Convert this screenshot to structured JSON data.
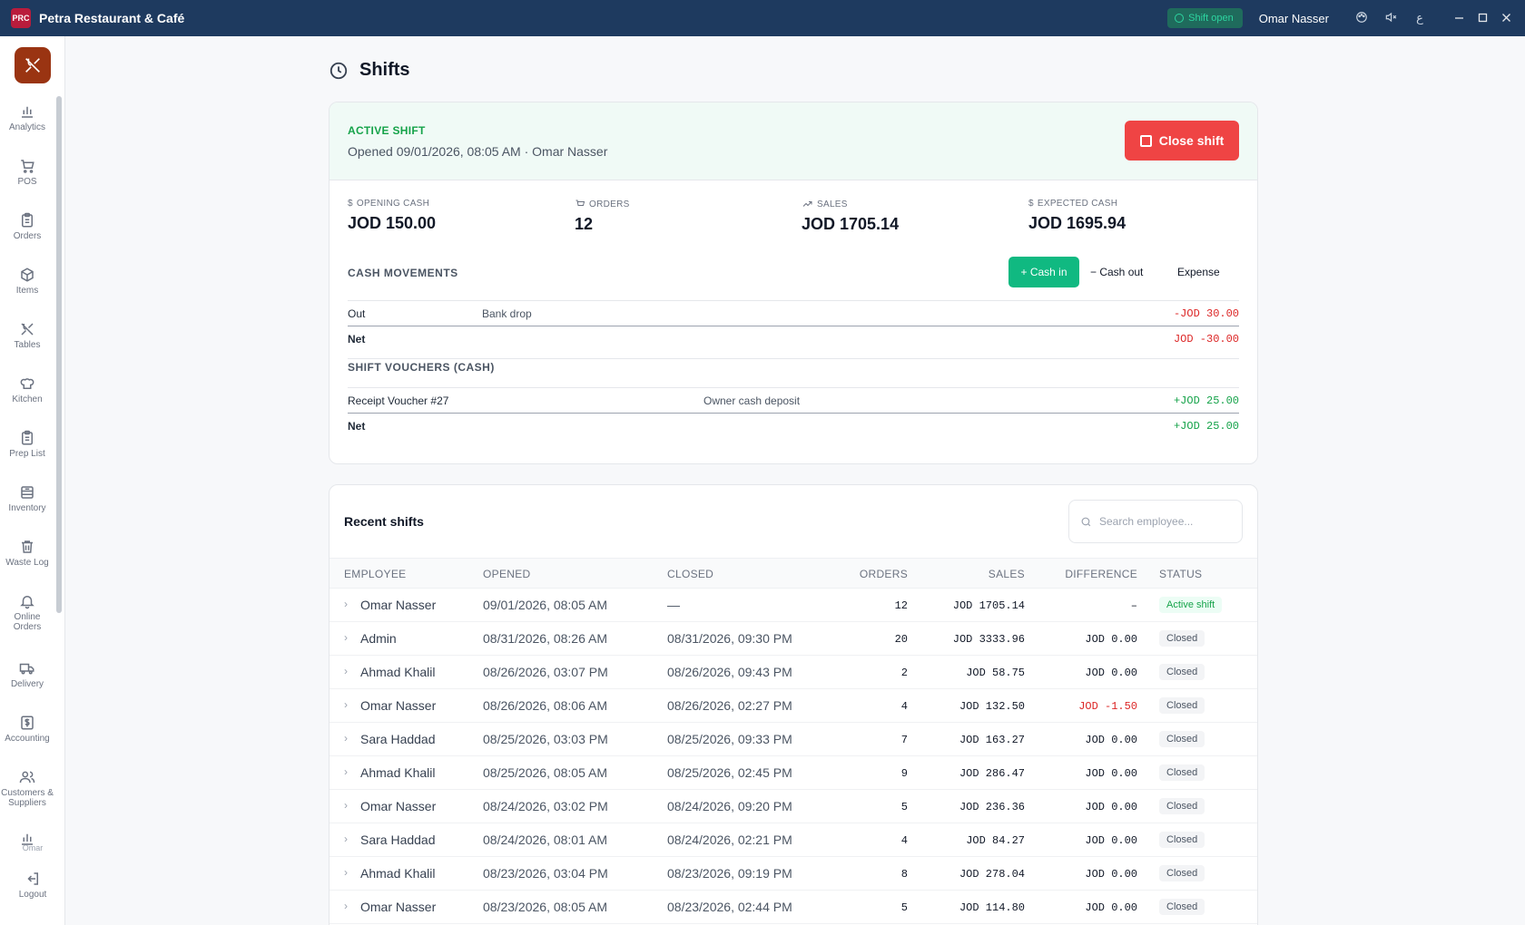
{
  "app": {
    "title": "Petra Restaurant & Café",
    "logo_text": "PRC"
  },
  "titlebar": {
    "shift_status": "Shift open",
    "user": "Omar Nasser",
    "icons": [
      "palette-icon",
      "mute-icon",
      "language-icon",
      "minimize-icon",
      "maximize-icon",
      "close-icon"
    ],
    "language_glyph": "ع"
  },
  "sidebar": {
    "items": [
      {
        "label": "Analytics",
        "icon": "bar-chart-icon"
      },
      {
        "label": "POS",
        "icon": "cart-icon"
      },
      {
        "label": "Orders",
        "icon": "clipboard-icon"
      },
      {
        "label": "Items",
        "icon": "box-icon"
      },
      {
        "label": "Tables",
        "icon": "utensils-icon"
      },
      {
        "label": "Kitchen",
        "icon": "chef-hat-icon"
      },
      {
        "label": "Prep List",
        "icon": "clipboard-list-icon"
      },
      {
        "label": "Inventory",
        "icon": "inventory-icon"
      },
      {
        "label": "Waste Log",
        "icon": "trash-icon"
      },
      {
        "label": "Online Orders",
        "icon": "bell-icon"
      },
      {
        "label": "Delivery",
        "icon": "truck-icon"
      },
      {
        "label": "Accounting",
        "icon": "dollar-icon"
      },
      {
        "label": "Customers & Suppliers",
        "icon": "users-icon"
      }
    ],
    "user": "Omar",
    "logout": "Logout"
  },
  "page": {
    "title": "Shifts"
  },
  "active_shift": {
    "label": "ACTIVE SHIFT",
    "opened": "Opened 09/01/2026, 08:05 AM · Omar Nasser",
    "close_button": "Close shift",
    "stats": {
      "opening_cash": {
        "label": "OPENING CASH",
        "value": "JOD 150.00"
      },
      "orders": {
        "label": "ORDERS",
        "value": "12"
      },
      "sales": {
        "label": "SALES",
        "value": "JOD 1705.14"
      },
      "expected_cash": {
        "label": "EXPECTED CASH",
        "value": "JOD 1695.94"
      }
    },
    "cash_movements": {
      "title": "CASH MOVEMENTS",
      "buttons": {
        "cash_in": "+ Cash in",
        "cash_out": "− Cash out",
        "expense": "Expense"
      },
      "rows": [
        {
          "type": "Out",
          "note": "Bank drop",
          "amount": "-JOD 30.00"
        }
      ],
      "net_label": "Net",
      "net_value": "JOD -30.00"
    },
    "vouchers": {
      "title": "SHIFT VOUCHERS (CASH)",
      "rows": [
        {
          "name": "Receipt Voucher #27",
          "note": "Owner cash deposit",
          "amount": "+JOD 25.00"
        }
      ],
      "net_label": "Net",
      "net_value": "+JOD 25.00"
    }
  },
  "recent": {
    "title": "Recent shifts",
    "search_placeholder": "Search employee...",
    "columns": {
      "employee": "EMPLOYEE",
      "opened": "OPENED",
      "closed": "CLOSED",
      "orders": "ORDERS",
      "sales": "SALES",
      "difference": "DIFFERENCE",
      "status": "STATUS"
    },
    "rows": [
      {
        "employee": "Omar Nasser",
        "opened": "09/01/2026, 08:05 AM",
        "closed": "—",
        "orders": "12",
        "sales": "JOD 1705.14",
        "difference": "–",
        "status": "Active shift",
        "active": true
      },
      {
        "employee": "Admin",
        "opened": "08/31/2026, 08:26 AM",
        "closed": "08/31/2026, 09:30 PM",
        "orders": "20",
        "sales": "JOD 3333.96",
        "difference": "JOD 0.00",
        "status": "Closed"
      },
      {
        "employee": "Ahmad Khalil",
        "opened": "08/26/2026, 03:07 PM",
        "closed": "08/26/2026, 09:43 PM",
        "orders": "2",
        "sales": "JOD 58.75",
        "difference": "JOD 0.00",
        "status": "Closed"
      },
      {
        "employee": "Omar Nasser",
        "opened": "08/26/2026, 08:06 AM",
        "closed": "08/26/2026, 02:27 PM",
        "orders": "4",
        "sales": "JOD 132.50",
        "difference": "JOD -1.50",
        "status": "Closed",
        "negative": true
      },
      {
        "employee": "Sara Haddad",
        "opened": "08/25/2026, 03:03 PM",
        "closed": "08/25/2026, 09:33 PM",
        "orders": "7",
        "sales": "JOD 163.27",
        "difference": "JOD 0.00",
        "status": "Closed"
      },
      {
        "employee": "Ahmad Khalil",
        "opened": "08/25/2026, 08:05 AM",
        "closed": "08/25/2026, 02:45 PM",
        "orders": "9",
        "sales": "JOD 286.47",
        "difference": "JOD 0.00",
        "status": "Closed"
      },
      {
        "employee": "Omar Nasser",
        "opened": "08/24/2026, 03:02 PM",
        "closed": "08/24/2026, 09:20 PM",
        "orders": "5",
        "sales": "JOD 236.36",
        "difference": "JOD 0.00",
        "status": "Closed"
      },
      {
        "employee": "Sara Haddad",
        "opened": "08/24/2026, 08:01 AM",
        "closed": "08/24/2026, 02:21 PM",
        "orders": "4",
        "sales": "JOD 84.27",
        "difference": "JOD 0.00",
        "status": "Closed"
      },
      {
        "employee": "Ahmad Khalil",
        "opened": "08/23/2026, 03:04 PM",
        "closed": "08/23/2026, 09:19 PM",
        "orders": "8",
        "sales": "JOD 278.04",
        "difference": "JOD 0.00",
        "status": "Closed"
      },
      {
        "employee": "Omar Nasser",
        "opened": "08/23/2026, 08:05 AM",
        "closed": "08/23/2026, 02:44 PM",
        "orders": "5",
        "sales": "JOD 114.80",
        "difference": "JOD 0.00",
        "status": "Closed"
      }
    ]
  },
  "colors": {
    "titlebar": "#1e3a5f",
    "accent_green": "#10b981",
    "danger": "#ef4444",
    "brand": "#9a3412"
  }
}
